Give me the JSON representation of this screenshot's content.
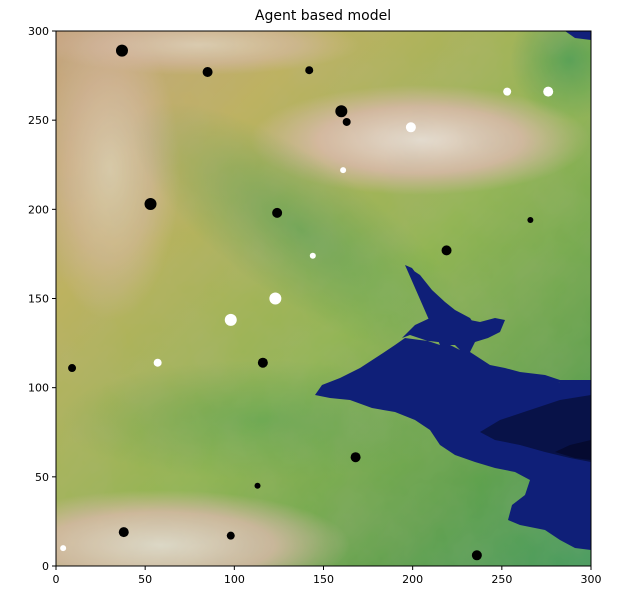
{
  "chart_data": {
    "type": "scatter",
    "title": "Agent based model",
    "xlabel": "",
    "ylabel": "",
    "xlim": [
      0,
      300
    ],
    "ylim": [
      0,
      300
    ],
    "xticks": [
      0,
      50,
      100,
      150,
      200,
      250,
      300
    ],
    "yticks": [
      0,
      50,
      100,
      150,
      200,
      250,
      300
    ],
    "grid": false,
    "background": "terrain elevation map (gist_earth-like colormap: dark blue water, green lowlands, tan and pale pink highlands)",
    "colors": {
      "water_deep": "#08104a",
      "water": "#12207a",
      "lowland": "#5fa24a",
      "midland": "#b9b45a",
      "highland": "#c9a07a",
      "peak": "#eadbd5",
      "agent_black": "#000000",
      "agent_white": "#ffffff"
    },
    "series": [
      {
        "color": "black",
        "points": [
          {
            "x": 37,
            "y": 289,
            "size": 6
          },
          {
            "x": 85,
            "y": 277,
            "size": 5
          },
          {
            "x": 142,
            "y": 278,
            "size": 4
          },
          {
            "x": 160,
            "y": 255,
            "size": 6
          },
          {
            "x": 163,
            "y": 249,
            "size": 4
          },
          {
            "x": 53,
            "y": 203,
            "size": 6
          },
          {
            "x": 124,
            "y": 198,
            "size": 5
          },
          {
            "x": 266,
            "y": 194,
            "size": 3
          },
          {
            "x": 219,
            "y": 177,
            "size": 5
          },
          {
            "x": 116,
            "y": 114,
            "size": 5
          },
          {
            "x": 9,
            "y": 111,
            "size": 4
          },
          {
            "x": 168,
            "y": 61,
            "size": 5
          },
          {
            "x": 113,
            "y": 45,
            "size": 3
          },
          {
            "x": 38,
            "y": 19,
            "size": 5
          },
          {
            "x": 98,
            "y": 17,
            "size": 4
          },
          {
            "x": 236,
            "y": 6,
            "size": 5
          }
        ]
      },
      {
        "color": "white",
        "points": [
          {
            "x": 253,
            "y": 266,
            "size": 4
          },
          {
            "x": 276,
            "y": 266,
            "size": 5
          },
          {
            "x": 199,
            "y": 246,
            "size": 5
          },
          {
            "x": 161,
            "y": 222,
            "size": 3
          },
          {
            "x": 144,
            "y": 174,
            "size": 3
          },
          {
            "x": 123,
            "y": 150,
            "size": 6
          },
          {
            "x": 98,
            "y": 138,
            "size": 6
          },
          {
            "x": 57,
            "y": 114,
            "size": 4
          },
          {
            "x": 4,
            "y": 10,
            "size": 3
          }
        ]
      }
    ]
  }
}
